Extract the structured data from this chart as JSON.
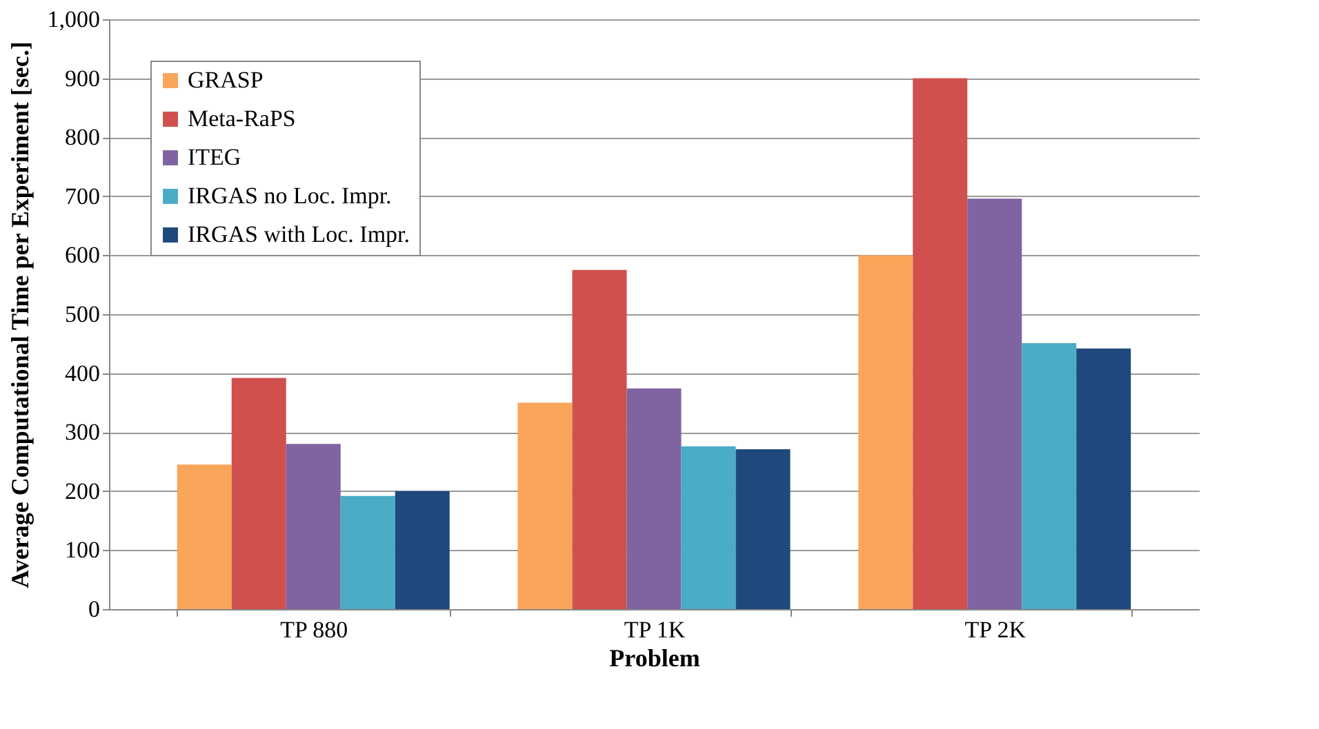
{
  "chart_data": {
    "type": "bar",
    "xlabel": "Problem",
    "ylabel": "Average Computational Time per Experiment [sec.]",
    "categories": [
      "TP 880",
      "TP 1K",
      "TP 2K"
    ],
    "series": [
      {
        "name": "GRASP",
        "color": "#f9a55a",
        "values": [
          245,
          350,
          600
        ]
      },
      {
        "name": "Meta-RaPS",
        "color": "#d0504d",
        "values": [
          392,
          575,
          900
        ]
      },
      {
        "name": "ITEG",
        "color": "#8064a2",
        "values": [
          280,
          374,
          696
        ]
      },
      {
        "name": "IRGAS no Loc. Impr.",
        "color": "#4bacc6",
        "values": [
          192,
          276,
          451
        ]
      },
      {
        "name": "IRGAS with Loc. Impr.",
        "color": "#1f497d",
        "values": [
          200,
          271,
          442
        ]
      }
    ],
    "ylim": [
      0,
      1000
    ],
    "yticks": [
      {
        "value": 0,
        "label": "0"
      },
      {
        "value": 100,
        "label": "100"
      },
      {
        "value": 200,
        "label": "200"
      },
      {
        "value": 300,
        "label": "300"
      },
      {
        "value": 400,
        "label": "400"
      },
      {
        "value": 500,
        "label": "500"
      },
      {
        "value": 600,
        "label": "600"
      },
      {
        "value": 700,
        "label": "700"
      },
      {
        "value": 800,
        "label": "800"
      },
      {
        "value": 900,
        "label": "900"
      },
      {
        "value": 1000,
        "label": "1,000"
      }
    ],
    "grid": "y",
    "legend": "top left"
  }
}
